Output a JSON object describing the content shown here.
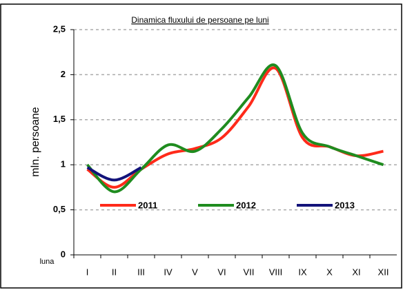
{
  "chart_data": {
    "type": "line",
    "title": "Dinamica fluxului de persoane pe luni",
    "ylabel": "mln. persoane",
    "xlabel": "luna",
    "categories": [
      "I",
      "II",
      "III",
      "IV",
      "V",
      "VI",
      "VII",
      "VIII",
      "IX",
      "X",
      "XI",
      "XII"
    ],
    "series": [
      {
        "name": "2011",
        "color": "#ff2a1a",
        "values": [
          0.95,
          0.75,
          0.95,
          1.12,
          1.18,
          1.3,
          1.65,
          2.07,
          1.3,
          1.2,
          1.1,
          1.15
        ]
      },
      {
        "name": "2012",
        "color": "#1f8c1f",
        "values": [
          1.0,
          0.7,
          0.95,
          1.22,
          1.15,
          1.4,
          1.75,
          2.1,
          1.35,
          1.2,
          1.1,
          1.0
        ]
      },
      {
        "name": "2013",
        "color": "#13137a",
        "values": [
          0.97,
          0.83,
          0.97,
          null,
          null,
          null,
          null,
          null,
          null,
          null,
          null,
          null
        ]
      }
    ],
    "ylim": [
      0,
      2.5
    ],
    "yticks": [
      {
        "value": 0,
        "label": "0"
      },
      {
        "value": 0.5,
        "label": "0,5"
      },
      {
        "value": 1,
        "label": "1"
      },
      {
        "value": 1.5,
        "label": "1,5"
      },
      {
        "value": 2,
        "label": "2"
      },
      {
        "value": 2.5,
        "label": "2,5"
      }
    ],
    "grid": true
  }
}
